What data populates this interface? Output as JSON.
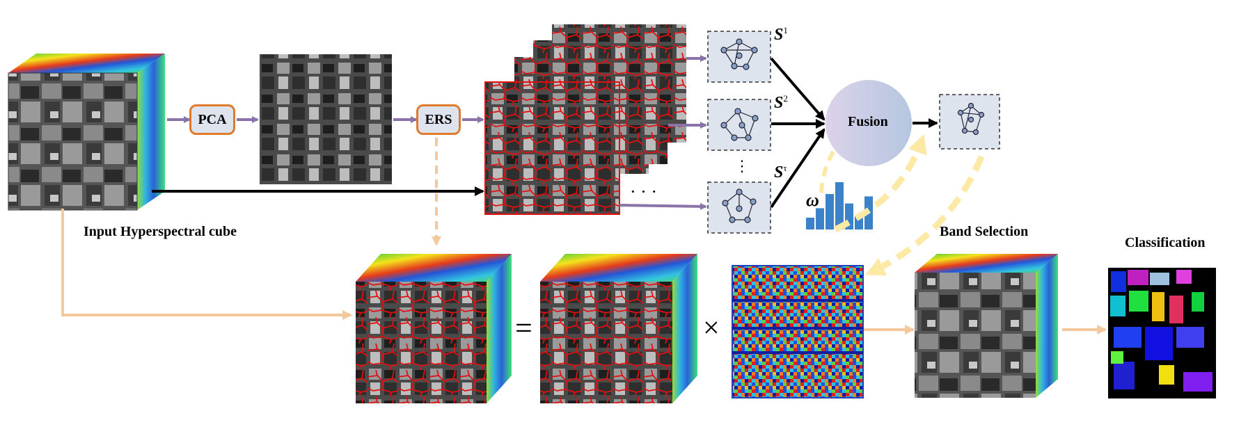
{
  "labels": {
    "input_cube": "Input Hyperspectral cube",
    "band_selection": "Band Selection",
    "classification": "Classification",
    "pca": "PCA",
    "ers": "ERS",
    "fusion": "Fusion",
    "s1": "S",
    "s1_sup": "1",
    "s2": "S",
    "s2_sup": "2",
    "st": "S",
    "st_sup": "τ",
    "omega": "ω",
    "equals": "=",
    "times": "×",
    "dots": "· · ·"
  },
  "colors": {
    "purple_arrow": "#8a73a8",
    "orange_arrow": "#f5c79c",
    "yellow_arrow": "#fde9a6",
    "box_border": "#e07a2a",
    "superpixel_red": "#e01010",
    "bar_blue": "#3b82c9",
    "fusion_left": "#d7d0e8",
    "fusion_right": "#b8c8e0"
  },
  "weight_bars": [
    0.25,
    0.45,
    0.75,
    1.0,
    0.55,
    0.3,
    0.7
  ],
  "icons": [
    "graph-icon",
    "fusion-node-icon",
    "arrow-icon"
  ]
}
